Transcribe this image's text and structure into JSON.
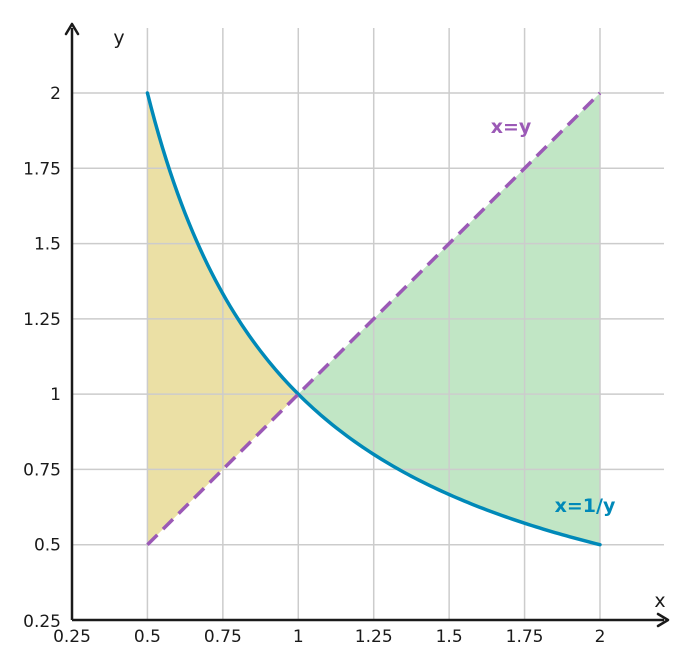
{
  "chart_data": {
    "type": "area",
    "xlabel": "x",
    "ylabel": "y",
    "xlim": [
      0.25,
      2.2
    ],
    "ylim": [
      0.25,
      2.25
    ],
    "x_ticks": [
      "0.25",
      "0.5",
      "0.75",
      "1",
      "1.25",
      "1.5",
      "1.75",
      "2"
    ],
    "y_ticks": [
      "0.25",
      "0.5",
      "0.75",
      "1",
      "1.25",
      "1.5",
      "1.75",
      "2"
    ],
    "grid": true,
    "series": [
      {
        "name": "x=1/y",
        "style": "solid",
        "color": "#0089b8",
        "x": [
          0.5,
          0.625,
          0.75,
          0.875,
          1,
          1.25,
          1.5,
          1.75,
          2
        ],
        "y": [
          2,
          1.6,
          1.3333,
          1.1429,
          1,
          0.8,
          0.6667,
          0.5714,
          0.5
        ]
      },
      {
        "name": "x=y",
        "style": "dashed",
        "color": "#9b59b6",
        "x": [
          0.5,
          2
        ],
        "y": [
          0.5,
          2
        ]
      }
    ],
    "shaded_regions": [
      {
        "between": [
          "x=1/y",
          "x=y"
        ],
        "x_range": [
          0.5,
          1
        ],
        "color": "#ebe0a5"
      },
      {
        "between": [
          "x=y",
          "x=1/y"
        ],
        "x_range": [
          1,
          2
        ],
        "color": "#c1e6c5"
      }
    ],
    "annotations": [
      {
        "text": "x=y",
        "color": "#9b59b6"
      },
      {
        "text": "x=1/y",
        "color": "#0089b8"
      }
    ]
  }
}
